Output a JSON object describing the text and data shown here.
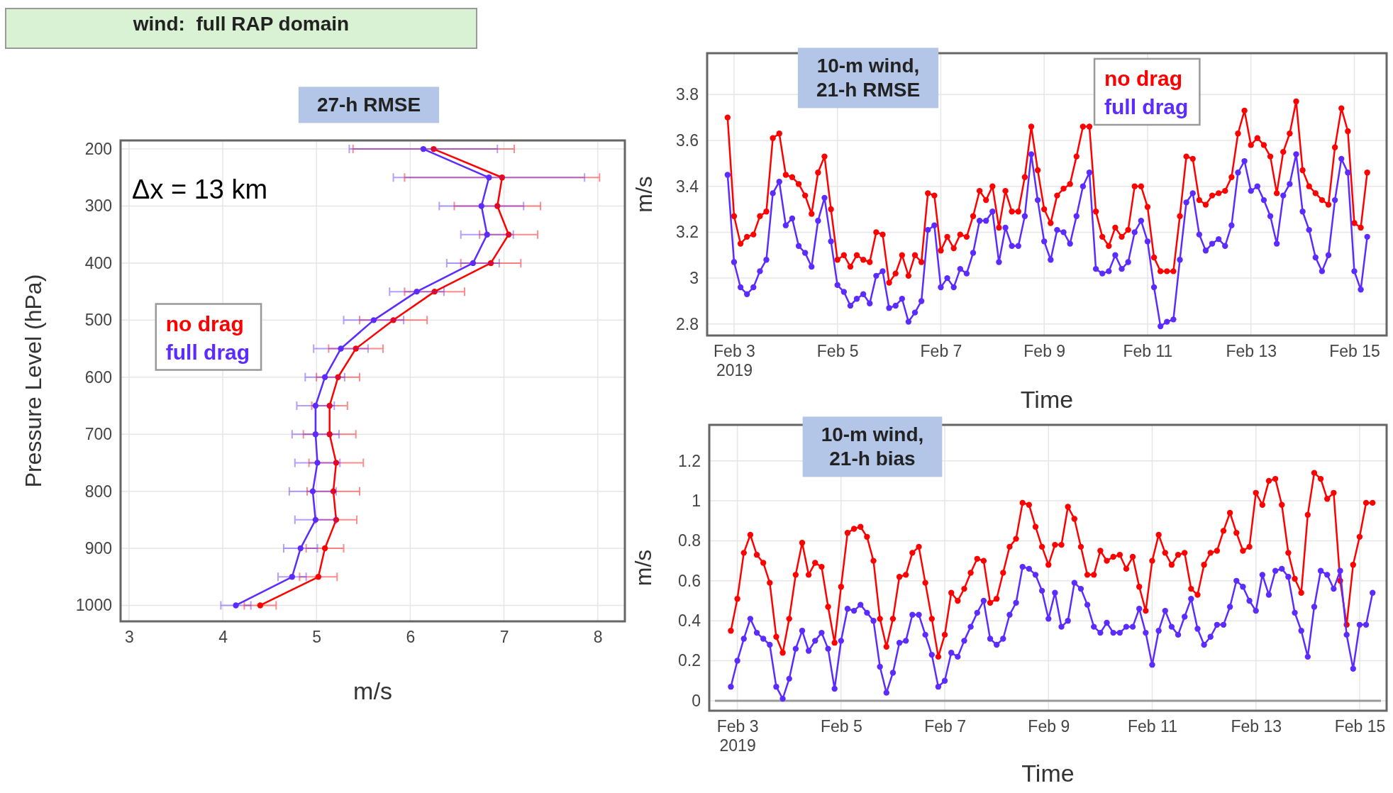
{
  "chart_data": [
    {
      "type": "line",
      "title": "27-h RMSE",
      "xlabel": "m/s",
      "ylabel": "Pressure Level (hPa)",
      "annotations": [
        "wind:  full RAP domain",
        "Δx = 13 km"
      ],
      "xlim": [
        2.91,
        8.29
      ],
      "xticks": [
        3,
        4,
        5,
        6,
        7,
        8
      ],
      "ylim": [
        1028,
        185
      ],
      "yticks": [
        200,
        300,
        400,
        500,
        600,
        700,
        800,
        900,
        1000
      ],
      "grid": true,
      "legend": "left",
      "marker": "circle",
      "line_style": "solid",
      "series": [
        {
          "name": "no drag",
          "color": "#ff0000",
          "x": [
            6.25,
            6.98,
            6.93,
            7.05,
            6.86,
            6.26,
            5.82,
            5.42,
            5.23,
            5.14,
            5.14,
            5.21,
            5.18,
            5.21,
            5.09,
            5.02,
            4.4
          ],
          "values": [
            200,
            250,
            300,
            350,
            400,
            450,
            500,
            550,
            600,
            650,
            700,
            750,
            800,
            850,
            900,
            950,
            1000
          ],
          "xerrors": [
            0.86,
            1.04,
            0.46,
            0.31,
            0.32,
            0.32,
            0.36,
            0.29,
            0.23,
            0.19,
            0.28,
            0.29,
            0.28,
            0.22,
            0.2,
            0.2,
            0.17
          ]
        },
        {
          "name": "full drag",
          "color": "#5b2bff",
          "x": [
            6.14,
            6.84,
            6.76,
            6.82,
            6.67,
            6.07,
            5.61,
            5.26,
            5.09,
            4.99,
            4.99,
            5.01,
            4.96,
            4.99,
            4.83,
            4.74,
            4.14
          ],
          "values": [
            200,
            250,
            300,
            350,
            400,
            450,
            500,
            550,
            600,
            650,
            700,
            750,
            800,
            850,
            900,
            950,
            1000
          ],
          "xerrors": [
            0.79,
            1.02,
            0.45,
            0.28,
            0.28,
            0.29,
            0.32,
            0.29,
            0.21,
            0.2,
            0.25,
            0.24,
            0.25,
            0.22,
            0.18,
            0.15,
            0.16
          ]
        }
      ]
    },
    {
      "type": "line",
      "title": "10-m wind,\n21-h RMSE",
      "xlabel": "Time",
      "ylabel": "m/s",
      "xlim": [
        "2019-02-02T11:30",
        "2019-02-15T15:00"
      ],
      "xticks": [
        {
          "value": "2019-02-03",
          "label": "Feb 3\n2019"
        },
        {
          "value": "2019-02-05",
          "label": "Feb 5"
        },
        {
          "value": "2019-02-07",
          "label": "Feb 7"
        },
        {
          "value": "2019-02-09",
          "label": "Feb 9"
        },
        {
          "value": "2019-02-11",
          "label": "Feb 11"
        },
        {
          "value": "2019-02-13",
          "label": "Feb 13"
        },
        {
          "value": "2019-02-15",
          "label": "Feb 15"
        }
      ],
      "ylim": [
        2.75,
        3.98
      ],
      "yticks": [
        2.8,
        3,
        3.2,
        3.4,
        3.6,
        3.8
      ],
      "grid": true,
      "legend": "top right",
      "marker": "circle",
      "line_style": "solid",
      "x": [
        "2019-02-02T21:00",
        "2019-02-03T00:00",
        "2019-02-03T03:00",
        "2019-02-03T06:00",
        "2019-02-03T09:00",
        "2019-02-03T12:00",
        "2019-02-03T15:00",
        "2019-02-03T18:00",
        "2019-02-03T21:00",
        "2019-02-04T00:00",
        "2019-02-04T03:00",
        "2019-02-04T06:00",
        "2019-02-04T09:00",
        "2019-02-04T12:00",
        "2019-02-04T15:00",
        "2019-02-04T18:00",
        "2019-02-04T21:00",
        "2019-02-05T00:00",
        "2019-02-05T03:00",
        "2019-02-05T06:00",
        "2019-02-05T09:00",
        "2019-02-05T12:00",
        "2019-02-05T15:00",
        "2019-02-05T18:00",
        "2019-02-05T21:00",
        "2019-02-06T00:00",
        "2019-02-06T03:00",
        "2019-02-06T06:00",
        "2019-02-06T09:00",
        "2019-02-06T12:00",
        "2019-02-06T15:00",
        "2019-02-06T18:00",
        "2019-02-06T21:00",
        "2019-02-07T00:00",
        "2019-02-07T03:00",
        "2019-02-07T06:00",
        "2019-02-07T09:00",
        "2019-02-07T12:00",
        "2019-02-07T15:00",
        "2019-02-07T18:00",
        "2019-02-07T21:00",
        "2019-02-08T00:00",
        "2019-02-08T03:00",
        "2019-02-08T06:00",
        "2019-02-08T09:00",
        "2019-02-08T12:00",
        "2019-02-08T15:00",
        "2019-02-08T18:00",
        "2019-02-08T21:00",
        "2019-02-09T00:00",
        "2019-02-09T03:00",
        "2019-02-09T06:00",
        "2019-02-09T09:00",
        "2019-02-09T12:00",
        "2019-02-09T15:00",
        "2019-02-09T18:00",
        "2019-02-09T21:00",
        "2019-02-10T00:00",
        "2019-02-10T03:00",
        "2019-02-10T06:00",
        "2019-02-10T09:00",
        "2019-02-10T12:00",
        "2019-02-10T15:00",
        "2019-02-10T18:00",
        "2019-02-10T21:00",
        "2019-02-11T00:00",
        "2019-02-11T03:00",
        "2019-02-11T06:00",
        "2019-02-11T09:00",
        "2019-02-11T12:00",
        "2019-02-11T15:00",
        "2019-02-11T18:00",
        "2019-02-11T21:00",
        "2019-02-12T00:00",
        "2019-02-12T03:00",
        "2019-02-12T06:00",
        "2019-02-12T09:00",
        "2019-02-12T12:00",
        "2019-02-12T15:00",
        "2019-02-12T18:00",
        "2019-02-12T21:00",
        "2019-02-13T00:00",
        "2019-02-13T03:00",
        "2019-02-13T06:00",
        "2019-02-13T09:00",
        "2019-02-13T12:00",
        "2019-02-13T15:00",
        "2019-02-13T18:00",
        "2019-02-13T21:00",
        "2019-02-14T00:00",
        "2019-02-14T03:00",
        "2019-02-14T06:00",
        "2019-02-14T09:00",
        "2019-02-14T12:00",
        "2019-02-14T15:00",
        "2019-02-14T18:00",
        "2019-02-14T21:00",
        "2019-02-15T00:00",
        "2019-02-15T03:00",
        "2019-02-15T06:00"
      ],
      "series": [
        {
          "name": "no drag",
          "color": "#ff0000",
          "values": [
            3.7,
            3.27,
            3.15,
            3.18,
            3.19,
            3.27,
            3.29,
            3.61,
            3.63,
            3.45,
            3.44,
            3.41,
            3.36,
            3.28,
            3.46,
            3.53,
            3.3,
            3.08,
            3.1,
            3.05,
            3.1,
            3.08,
            3.07,
            3.2,
            3.19,
            2.98,
            3.02,
            3.1,
            3.01,
            3.1,
            3.07,
            3.37,
            3.36,
            3.12,
            3.18,
            3.13,
            3.19,
            3.18,
            3.27,
            3.38,
            3.34,
            3.4,
            3.22,
            3.38,
            3.29,
            3.29,
            3.44,
            3.66,
            3.47,
            3.3,
            3.24,
            3.36,
            3.39,
            3.41,
            3.53,
            3.66,
            3.66,
            3.29,
            3.18,
            3.14,
            3.22,
            3.18,
            3.21,
            3.4,
            3.4,
            3.31,
            3.09,
            3.03,
            3.03,
            3.03,
            3.27,
            3.53,
            3.52,
            3.34,
            3.32,
            3.36,
            3.37,
            3.38,
            3.44,
            3.63,
            3.73,
            3.58,
            3.61,
            3.58,
            3.53,
            3.37,
            3.55,
            3.63,
            3.77,
            3.47,
            3.4,
            3.37,
            3.34,
            3.32,
            3.57,
            3.74,
            3.64,
            3.24,
            3.22,
            3.46
          ]
        },
        {
          "name": "full drag",
          "color": "#5b2bff",
          "values": [
            3.45,
            3.07,
            2.96,
            2.93,
            2.96,
            3.03,
            3.08,
            3.37,
            3.42,
            3.23,
            3.26,
            3.14,
            3.11,
            3.05,
            3.25,
            3.35,
            3.16,
            2.97,
            2.94,
            2.88,
            2.91,
            2.93,
            2.89,
            3.01,
            3.03,
            2.87,
            2.88,
            2.91,
            2.81,
            2.85,
            2.9,
            3.21,
            3.23,
            2.96,
            3.0,
            2.96,
            3.04,
            3.02,
            3.11,
            3.25,
            3.25,
            3.29,
            3.07,
            3.22,
            3.14,
            3.14,
            3.27,
            3.54,
            3.34,
            3.16,
            3.08,
            3.21,
            3.2,
            3.15,
            3.27,
            3.4,
            3.46,
            3.04,
            3.02,
            3.03,
            3.1,
            3.04,
            3.07,
            3.2,
            3.25,
            3.16,
            2.96,
            2.79,
            2.81,
            2.82,
            3.08,
            3.33,
            3.37,
            3.19,
            3.12,
            3.15,
            3.17,
            3.14,
            3.23,
            3.46,
            3.51,
            3.38,
            3.4,
            3.34,
            3.27,
            3.15,
            3.36,
            3.41,
            3.54,
            3.29,
            3.21,
            3.09,
            3.03,
            3.1,
            3.34,
            3.52,
            3.46,
            3.03,
            2.95,
            3.18
          ]
        }
      ]
    },
    {
      "type": "line",
      "title": "10-m wind,\n21-h bias",
      "xlabel": "Time",
      "ylabel": "m/s",
      "xlim": [
        "2019-02-02T11:00",
        "2019-02-15T12:30"
      ],
      "xticks": [
        {
          "value": "2019-02-03",
          "label": "Feb 3\n2019"
        },
        {
          "value": "2019-02-05",
          "label": "Feb 5"
        },
        {
          "value": "2019-02-07",
          "label": "Feb 7"
        },
        {
          "value": "2019-02-09",
          "label": "Feb 9"
        },
        {
          "value": "2019-02-11",
          "label": "Feb 11"
        },
        {
          "value": "2019-02-13",
          "label": "Feb 13"
        },
        {
          "value": "2019-02-15",
          "label": "Feb 15"
        }
      ],
      "ylim": [
        -0.05,
        1.38
      ],
      "yticks": [
        0,
        0.2,
        0.4,
        0.6,
        0.8,
        1,
        1.2
      ],
      "grid": true,
      "marker": "circle",
      "line_style": "solid",
      "ref_lines": [
        {
          "axis": "y",
          "value": 0,
          "color": "#999999"
        }
      ],
      "x": [
        "2019-02-02T21:00",
        "2019-02-03T00:00",
        "2019-02-03T03:00",
        "2019-02-03T06:00",
        "2019-02-03T09:00",
        "2019-02-03T12:00",
        "2019-02-03T15:00",
        "2019-02-03T18:00",
        "2019-02-03T21:00",
        "2019-02-04T00:00",
        "2019-02-04T03:00",
        "2019-02-04T06:00",
        "2019-02-04T09:00",
        "2019-02-04T12:00",
        "2019-02-04T15:00",
        "2019-02-04T18:00",
        "2019-02-04T21:00",
        "2019-02-05T00:00",
        "2019-02-05T03:00",
        "2019-02-05T06:00",
        "2019-02-05T09:00",
        "2019-02-05T12:00",
        "2019-02-05T15:00",
        "2019-02-05T18:00",
        "2019-02-05T21:00",
        "2019-02-06T00:00",
        "2019-02-06T03:00",
        "2019-02-06T06:00",
        "2019-02-06T09:00",
        "2019-02-06T12:00",
        "2019-02-06T15:00",
        "2019-02-06T18:00",
        "2019-02-06T21:00",
        "2019-02-07T00:00",
        "2019-02-07T03:00",
        "2019-02-07T06:00",
        "2019-02-07T09:00",
        "2019-02-07T12:00",
        "2019-02-07T15:00",
        "2019-02-07T18:00",
        "2019-02-07T21:00",
        "2019-02-08T00:00",
        "2019-02-08T03:00",
        "2019-02-08T06:00",
        "2019-02-08T09:00",
        "2019-02-08T12:00",
        "2019-02-08T15:00",
        "2019-02-08T18:00",
        "2019-02-08T21:00",
        "2019-02-09T00:00",
        "2019-02-09T03:00",
        "2019-02-09T06:00",
        "2019-02-09T09:00",
        "2019-02-09T12:00",
        "2019-02-09T15:00",
        "2019-02-09T18:00",
        "2019-02-09T21:00",
        "2019-02-10T00:00",
        "2019-02-10T03:00",
        "2019-02-10T06:00",
        "2019-02-10T09:00",
        "2019-02-10T12:00",
        "2019-02-10T15:00",
        "2019-02-10T18:00",
        "2019-02-10T21:00",
        "2019-02-11T00:00",
        "2019-02-11T03:00",
        "2019-02-11T06:00",
        "2019-02-11T09:00",
        "2019-02-11T12:00",
        "2019-02-11T15:00",
        "2019-02-11T18:00",
        "2019-02-11T21:00",
        "2019-02-12T00:00",
        "2019-02-12T03:00",
        "2019-02-12T06:00",
        "2019-02-12T09:00",
        "2019-02-12T12:00",
        "2019-02-12T15:00",
        "2019-02-12T18:00",
        "2019-02-12T21:00",
        "2019-02-13T00:00",
        "2019-02-13T03:00",
        "2019-02-13T06:00",
        "2019-02-13T09:00",
        "2019-02-13T12:00",
        "2019-02-13T15:00",
        "2019-02-13T18:00",
        "2019-02-13T21:00",
        "2019-02-14T00:00",
        "2019-02-14T03:00",
        "2019-02-14T06:00",
        "2019-02-14T09:00",
        "2019-02-14T12:00",
        "2019-02-14T15:00",
        "2019-02-14T18:00",
        "2019-02-14T21:00",
        "2019-02-15T00:00",
        "2019-02-15T03:00",
        "2019-02-15T06:00"
      ],
      "series": [
        {
          "color": "#ff0000",
          "values": [
            0.35,
            0.51,
            0.74,
            0.83,
            0.73,
            0.69,
            0.59,
            0.32,
            0.24,
            0.41,
            0.63,
            0.79,
            0.63,
            0.69,
            0.67,
            0.47,
            0.29,
            0.57,
            0.84,
            0.86,
            0.87,
            0.82,
            0.7,
            0.41,
            0.27,
            0.41,
            0.62,
            0.63,
            0.74,
            0.77,
            0.59,
            0.41,
            0.22,
            0.33,
            0.54,
            0.5,
            0.56,
            0.64,
            0.71,
            0.7,
            0.49,
            0.51,
            0.64,
            0.77,
            0.81,
            0.99,
            0.98,
            0.87,
            0.77,
            0.68,
            0.78,
            0.78,
            0.97,
            0.91,
            0.77,
            0.63,
            0.63,
            0.75,
            0.7,
            0.72,
            0.73,
            0.66,
            0.72,
            0.57,
            0.45,
            0.7,
            0.83,
            0.74,
            0.68,
            0.73,
            0.74,
            0.56,
            0.53,
            0.68,
            0.74,
            0.75,
            0.85,
            0.94,
            0.84,
            0.75,
            0.77,
            1.04,
            0.98,
            1.1,
            1.11,
            0.98,
            0.74,
            0.61,
            0.54,
            0.93,
            1.14,
            1.11,
            1.01,
            1.04,
            0.6,
            0.38,
            0.68,
            0.82,
            0.99,
            0.99
          ]
        },
        {
          "color": "#5b2bff",
          "values": [
            0.07,
            0.2,
            0.31,
            0.41,
            0.34,
            0.31,
            0.28,
            0.07,
            0.01,
            0.11,
            0.26,
            0.35,
            0.25,
            0.3,
            0.34,
            0.26,
            0.06,
            0.3,
            0.46,
            0.45,
            0.48,
            0.44,
            0.4,
            0.17,
            0.04,
            0.14,
            0.29,
            0.3,
            0.43,
            0.43,
            0.33,
            0.23,
            0.07,
            0.1,
            0.24,
            0.22,
            0.3,
            0.37,
            0.44,
            0.5,
            0.31,
            0.28,
            0.31,
            0.43,
            0.49,
            0.67,
            0.66,
            0.63,
            0.55,
            0.41,
            0.54,
            0.37,
            0.4,
            0.59,
            0.56,
            0.48,
            0.37,
            0.34,
            0.39,
            0.34,
            0.34,
            0.37,
            0.37,
            0.46,
            0.34,
            0.18,
            0.35,
            0.45,
            0.37,
            0.33,
            0.42,
            0.51,
            0.36,
            0.28,
            0.32,
            0.38,
            0.38,
            0.47,
            0.6,
            0.57,
            0.5,
            0.45,
            0.63,
            0.53,
            0.65,
            0.66,
            0.62,
            0.44,
            0.35,
            0.22,
            0.47,
            0.65,
            0.63,
            0.56,
            0.65,
            0.33,
            0.16,
            0.38,
            0.38,
            0.54
          ]
        }
      ]
    }
  ]
}
